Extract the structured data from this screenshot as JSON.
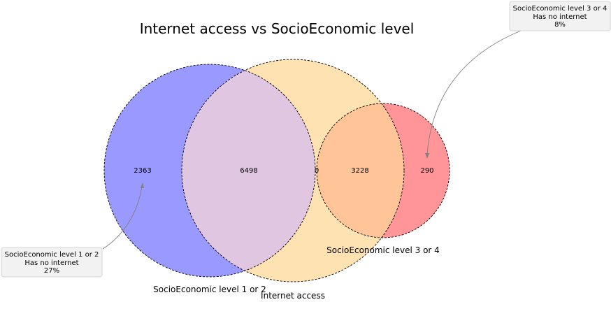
{
  "diagram": {
    "title": "Internet access vs SocioEconomic level",
    "sets": [
      {
        "label": "SocioEconomic level 1 or 2",
        "color": "#9999ff"
      },
      {
        "label": "Internet access",
        "color": "#ffe2b1"
      },
      {
        "label": "SocioEconomic level 3 or 4",
        "color": "#ff9599"
      }
    ],
    "overlap_colors": {
      "level12_and_internet": "#e0c6e1",
      "level34_and_internet": "#ffc599"
    },
    "regions": {
      "level12_only": "2363",
      "level12_and_internet": "6498",
      "level12_and_level34": "0",
      "level34_and_internet": "3228",
      "level34_only": "290"
    },
    "callouts": [
      {
        "lines": [
          "SocioEconomic level 1 or 2",
          "Has no internet",
          "27%"
        ]
      },
      {
        "lines": [
          "SocioEconomic level 3 or 4",
          "Has no internet",
          "8%"
        ]
      }
    ]
  }
}
